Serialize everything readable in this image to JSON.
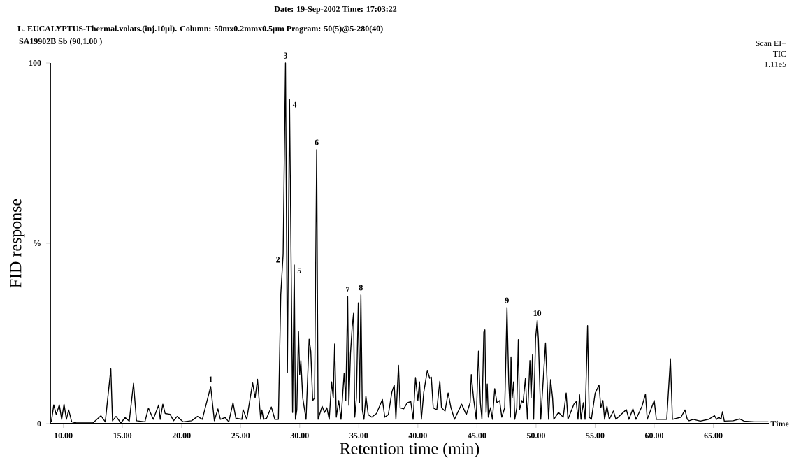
{
  "chart_data": {
    "type": "line",
    "title": "Date: 19-Sep-2002  Time:  17:03:22",
    "subtitle": "L. EUCALYPTUS-Thermal.volats.(inj.10μl). Column: 50mx0.2mmx0.5μm Program: 50(5)@5-280(40)",
    "xlabel": "Retention time (min)",
    "ylabel": "FID response",
    "annotations": [
      "SA19902B Sb (90,1.00 )",
      "Scan EI+",
      "TIC",
      "1.11e5",
      "Time",
      {
        "text": "1",
        "x": 22.47,
        "y": 10.3
      },
      {
        "text": "2",
        "x": 28.6,
        "y": 47
      },
      {
        "text": "3",
        "x": 28.8,
        "y": 100
      },
      {
        "text": "4",
        "x": 29.14,
        "y": 90
      },
      {
        "text": "5",
        "x": 29.54,
        "y": 44
      },
      {
        "text": "6",
        "x": 31.44,
        "y": 76
      },
      {
        "text": "7",
        "x": 34.06,
        "y": 35.2
      },
      {
        "text": "8",
        "x": 35.18,
        "y": 35.7
      },
      {
        "text": "9",
        "x": 47.54,
        "y": 32.2
      },
      {
        "text": "10",
        "x": 50.1,
        "y": 28.6
      }
    ],
    "color": "#000000",
    "line_style": "solid",
    "marker": "none",
    "grid": false,
    "xlim": [
      8.9,
      69.7
    ],
    "ylim": [
      0,
      100
    ],
    "xticks": [
      {
        "value": 10,
        "label": "10.00"
      },
      {
        "value": 15,
        "label": "15.00"
      },
      {
        "value": 20,
        "label": "20.00"
      },
      {
        "value": 25,
        "label": "25.00"
      },
      {
        "value": 30,
        "label": "30.00"
      },
      {
        "value": 35,
        "label": "35.00"
      },
      {
        "value": 40,
        "label": "40.00"
      },
      {
        "value": 45,
        "label": "45.00"
      },
      {
        "value": 50,
        "label": "50.00"
      },
      {
        "value": 55,
        "label": "55.00"
      },
      {
        "value": 60,
        "label": "60.00"
      },
      {
        "value": 65,
        "label": "65.00"
      }
    ],
    "yticks": [
      0,
      {
        "value": 50,
        "label": "%"
      },
      100
    ],
    "x": [
      8.99,
      9.19,
      9.4,
      9.66,
      9.86,
      10.06,
      10.26,
      10.45,
      10.71,
      11.1,
      12.5,
      13.18,
      13.55,
      14.02,
      14.16,
      14.46,
      14.87,
      15.23,
      15.58,
      15.94,
      16.19,
      16.9,
      17.2,
      17.61,
      18.07,
      18.2,
      18.42,
      18.62,
      19.03,
      19.33,
      19.63,
      20.14,
      20.85,
      21.36,
      21.76,
      22.47,
      22.78,
      23.08,
      23.29,
      23.69,
      24.0,
      24.36,
      24.6,
      25.11,
      25.21,
      25.52,
      26.02,
      26.23,
      26.43,
      26.7,
      26.8,
      26.94,
      27.2,
      27.6,
      27.9,
      28.2,
      28.4,
      28.6,
      28.8,
      28.96,
      29.14,
      29.4,
      29.54,
      29.64,
      29.76,
      29.9,
      30.0,
      30.1,
      30.26,
      30.54,
      30.8,
      30.94,
      31.1,
      31.26,
      31.44,
      31.56,
      31.9,
      32.1,
      32.3,
      32.5,
      32.7,
      32.84,
      32.96,
      33.1,
      33.3,
      33.5,
      33.76,
      33.9,
      34.06,
      34.16,
      34.3,
      34.44,
      34.56,
      34.66,
      34.8,
      34.96,
      35.06,
      35.18,
      35.3,
      35.44,
      35.6,
      35.8,
      36.1,
      36.5,
      37.0,
      37.2,
      37.5,
      37.8,
      38.0,
      38.14,
      38.36,
      38.5,
      38.8,
      39.1,
      39.4,
      39.6,
      39.8,
      40.0,
      40.14,
      40.3,
      40.5,
      40.8,
      41.0,
      41.14,
      41.3,
      41.6,
      41.86,
      42.0,
      42.3,
      42.56,
      42.8,
      43.1,
      43.7,
      44.1,
      44.42,
      44.52,
      44.71,
      44.94,
      45.13,
      45.29,
      45.42,
      45.58,
      45.67,
      45.77,
      45.87,
      45.96,
      46.15,
      46.31,
      46.5,
      46.69,
      46.92,
      47.1,
      47.35,
      47.54,
      47.69,
      47.83,
      47.88,
      47.98,
      48.1,
      48.2,
      48.37,
      48.5,
      48.6,
      48.8,
      48.9,
      49.1,
      49.27,
      49.48,
      49.58,
      49.7,
      49.8,
      49.96,
      50.1,
      50.2,
      50.4,
      50.8,
      50.96,
      51.06,
      51.23,
      51.4,
      51.5,
      51.9,
      52.3,
      52.55,
      52.7,
      53.2,
      53.4,
      53.55,
      53.68,
      53.8,
      54.0,
      54.15,
      54.36,
      54.5,
      54.68,
      55.0,
      55.33,
      55.48,
      55.66,
      55.8,
      56.0,
      56.2,
      56.54,
      56.76,
      57.64,
      57.86,
      58.2,
      58.46,
      58.96,
      59.26,
      59.41,
      60.0,
      60.18,
      61.06,
      61.37,
      61.54,
      62.27,
      62.6,
      62.8,
      62.95,
      63.3,
      63.9,
      64.6,
      65.1,
      65.28,
      65.47,
      65.65,
      65.78,
      65.93,
      66.68,
      67.24,
      67.6,
      68.5,
      69.66
    ],
    "values": [
      0.5,
      5.2,
      2.5,
      5.2,
      1.2,
      5.4,
      1.2,
      3.8,
      0.5,
      0.2,
      0.2,
      2.2,
      0.5,
      15.2,
      0.8,
      2,
      0.2,
      1.7,
      0.7,
      11.2,
      0.8,
      0.5,
      4.3,
      1.2,
      5.2,
      1.2,
      5.4,
      2.8,
      2.6,
      0.8,
      2,
      0.5,
      0.8,
      2,
      1.2,
      10.3,
      0.8,
      4.1,
      1.2,
      1.7,
      0.5,
      5.8,
      1.5,
      1.2,
      3.9,
      1.2,
      11.3,
      7.1,
      12.3,
      1.2,
      3.8,
      1.2,
      1.5,
      4.6,
      1.2,
      1.2,
      35.8,
      47,
      100,
      14.2,
      90,
      3.1,
      44,
      1.2,
      3.8,
      25.5,
      13.6,
      17.5,
      7.1,
      1.2,
      23.4,
      20.1,
      6.4,
      7.1,
      76,
      1.2,
      4.8,
      3.1,
      4.4,
      1.2,
      11.6,
      7.1,
      22.1,
      1.8,
      6.4,
      1.2,
      13.9,
      6.4,
      35.2,
      5.1,
      19.5,
      26.7,
      30.6,
      1.8,
      7.1,
      33.5,
      5.8,
      35.7,
      3.8,
      1.2,
      7.7,
      2.5,
      1.8,
      2.8,
      6.7,
      1.8,
      2.5,
      8.7,
      10.7,
      1.2,
      16.2,
      4.4,
      4.1,
      5.8,
      6.1,
      1.2,
      12.8,
      6.4,
      11.6,
      1.2,
      8.7,
      14.8,
      12.6,
      12.9,
      4.4,
      3.8,
      11.8,
      4.4,
      3.5,
      8.5,
      4.4,
      1.2,
      5.4,
      2.5,
      5.8,
      13.6,
      7.1,
      1.2,
      20.1,
      5.8,
      1.2,
      25.4,
      26.0,
      3.1,
      11.0,
      1.8,
      4.4,
      1.2,
      9.7,
      5.8,
      6.4,
      1.8,
      4.4,
      32.2,
      11.3,
      1.8,
      18.5,
      7.1,
      11.6,
      1.2,
      4.4,
      23.3,
      3.8,
      6.4,
      5.8,
      12.6,
      1.2,
      17.5,
      7.1,
      19.1,
      1.2,
      23.7,
      28.6,
      23.4,
      1.2,
      22.4,
      9.7,
      1.2,
      12.2,
      7.1,
      1.2,
      3.1,
      1.8,
      8.5,
      1.2,
      5.4,
      6.1,
      1.2,
      8.0,
      1.2,
      5.8,
      1.2,
      27.2,
      1.8,
      1.2,
      8.4,
      10.7,
      4.4,
      6.4,
      1.2,
      4.8,
      1.2,
      3.5,
      1.2,
      3.9,
      1.2,
      4.1,
      1.2,
      4.8,
      8.2,
      1.2,
      6.4,
      1.2,
      1.2,
      18.0,
      1.2,
      1.8,
      3.8,
      1.2,
      0.8,
      1.2,
      0.7,
      1.2,
      2.2,
      1.2,
      1.8,
      1.2,
      3.3,
      0.7,
      0.8,
      1.3,
      0.7,
      0.5,
      0.5
    ]
  }
}
